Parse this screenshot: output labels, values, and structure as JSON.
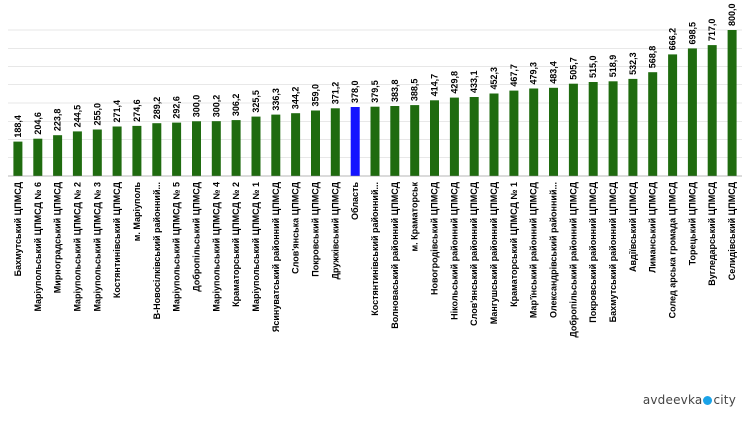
{
  "chart_data": {
    "type": "bar",
    "categories": [
      "Бахмутський ЦПМСД",
      "Маріупольський ЦПМСД № 6",
      "Мирноградський ЦПМСД",
      "Маріупольський ЦПМСД № 2",
      "Маріупольський ЦПМСД № 3",
      "Костянтинівський ЦПМСД",
      "м. Маріуполь",
      "В-Новосілківський районний...",
      "Маріупольський ЦПМСД № 5",
      "Добропільський ЦПМСД",
      "Маріупольський ЦПМСД № 4",
      "Краматорський ЦПМСД № 2",
      "Маріупольський ЦПМСД № 1",
      "Ясинуватський районний ЦПМСД",
      "Слов'янська ЦПМСД",
      "Покровський ЦПМСД",
      "Дружківський ЦПМСД",
      "Область",
      "Костянтинівський районний...",
      "Волноваський районний ЦПМСД",
      "м. Краматорськ",
      "Новогродівський ЦПМСД",
      "Нікольський районний ЦПМСД",
      "Слов'янський районний ЦПМСД",
      "Мангушський районний ЦПМСД",
      "Краматорський ЦПМСД № 1",
      "Мар'їнський районний ЦПМСД",
      "Олександрівський районний...",
      "Добропільський районний ЦПМСД",
      "Покровський районний ЦПМСД",
      "Бахмутський районний ЦПМСД",
      "Авдіївський ЦПМСД",
      "Лиманський ЦПМСД",
      "Солед арська громада ЦПМСД",
      "Торецький ЦПМСД",
      "Вугледарський ЦПМСД",
      "Селидівський ЦПМСД"
    ],
    "values": [
      188.4,
      204.6,
      223.8,
      244.5,
      255.0,
      271.4,
      274.6,
      289.2,
      292.6,
      300.0,
      300.2,
      306.2,
      325.5,
      336.3,
      344.2,
      359.0,
      371.2,
      378.0,
      379.5,
      383.8,
      388.5,
      414.7,
      429.8,
      433.1,
      452.3,
      467.7,
      479.3,
      483.4,
      505.7,
      515.0,
      518.9,
      532.3,
      568.8,
      666.2,
      698.5,
      717.0,
      800.0
    ],
    "value_labels": [
      "188,4",
      "204,6",
      "223,8",
      "244,5",
      "255,0",
      "271,4",
      "274,6",
      "289,2",
      "292,6",
      "300,0",
      "300,2",
      "306,2",
      "325,5",
      "336,3",
      "344,2",
      "359,0",
      "371,2",
      "378,0",
      "379,5",
      "383,8",
      "388,5",
      "414,7",
      "429,8",
      "433,1",
      "452,3",
      "467,7",
      "479,3",
      "483,4",
      "505,7",
      "515,0",
      "518,9",
      "532,3",
      "568,8",
      "666,2",
      "698,5",
      "717,0",
      "800,0"
    ],
    "highlight_index": 17,
    "ylim": [
      0,
      800
    ],
    "grid": true,
    "colors": {
      "bar": "#1f6b0f",
      "highlight": "#1414ff",
      "grid": "#d0d0d0"
    }
  },
  "watermark": {
    "before": "avdeevka",
    "after": "city"
  }
}
